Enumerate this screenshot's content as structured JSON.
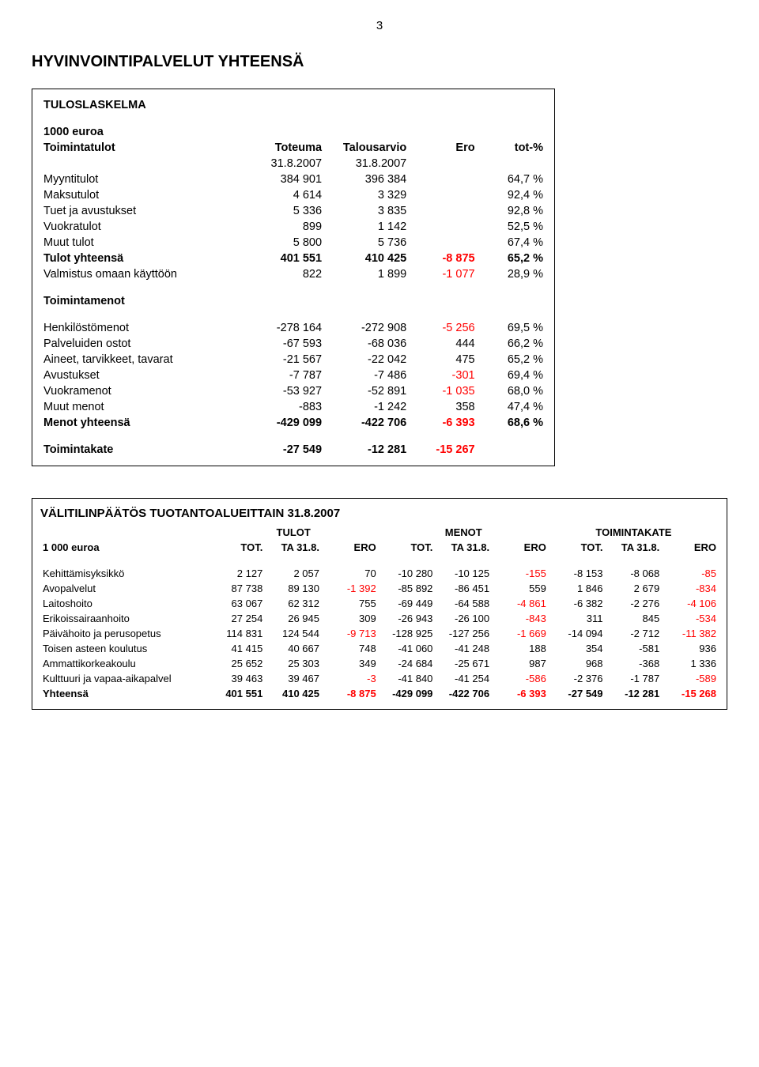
{
  "page_number": "3",
  "main_title": "HYVINVOINTIPALVELUT YHTEENSÄ",
  "table1": {
    "title": "TULOSLASKELMA",
    "subtitle": "1000 euroa",
    "header_row": [
      "Toimintatulot",
      "Toteuma",
      "Talousarvio",
      "Ero",
      "tot-%"
    ],
    "date_row": [
      "",
      "31.8.2007",
      "31.8.2007",
      "",
      ""
    ],
    "rows": [
      {
        "label": "Myyntitulot",
        "c": [
          "384 901",
          "396 384",
          "",
          "64,7 %"
        ],
        "neg": [
          false,
          false,
          false,
          false
        ]
      },
      {
        "label": "Maksutulot",
        "c": [
          "4 614",
          "3 329",
          "",
          "92,4 %"
        ],
        "neg": [
          false,
          false,
          false,
          false
        ]
      },
      {
        "label": "Tuet ja avustukset",
        "c": [
          "5 336",
          "3 835",
          "",
          "92,8 %"
        ],
        "neg": [
          false,
          false,
          false,
          false
        ]
      },
      {
        "label": "Vuokratulot",
        "c": [
          "899",
          "1 142",
          "",
          "52,5 %"
        ],
        "neg": [
          false,
          false,
          false,
          false
        ]
      },
      {
        "label": "Muut tulot",
        "c": [
          "5 800",
          "5 736",
          "",
          "67,4 %"
        ],
        "neg": [
          false,
          false,
          false,
          false
        ]
      },
      {
        "label": "Tulot yhteensä",
        "c": [
          "401 551",
          "410 425",
          "-8 875",
          "65,2 %"
        ],
        "neg": [
          false,
          false,
          true,
          false
        ],
        "bold": true
      },
      {
        "label": "Valmistus omaan käyttöön",
        "c": [
          "822",
          "1 899",
          "-1 077",
          "28,9 %"
        ],
        "neg": [
          false,
          false,
          true,
          false
        ]
      }
    ],
    "toimintamenot_label": "Toimintamenot",
    "rows2": [
      {
        "label": "Henkilöstömenot",
        "c": [
          "-278 164",
          "-272 908",
          "-5 256",
          "69,5 %"
        ],
        "neg": [
          false,
          false,
          true,
          false
        ]
      },
      {
        "label": "Palveluiden ostot",
        "c": [
          "-67 593",
          "-68 036",
          "444",
          "66,2 %"
        ],
        "neg": [
          false,
          false,
          false,
          false
        ]
      },
      {
        "label": "Aineet, tarvikkeet, tavarat",
        "c": [
          "-21 567",
          "-22 042",
          "475",
          "65,2 %"
        ],
        "neg": [
          false,
          false,
          false,
          false
        ]
      },
      {
        "label": "Avustukset",
        "c": [
          "-7 787",
          "-7 486",
          "-301",
          "69,4 %"
        ],
        "neg": [
          false,
          false,
          true,
          false
        ]
      },
      {
        "label": "Vuokramenot",
        "c": [
          "-53 927",
          "-52 891",
          "-1 035",
          "68,0 %"
        ],
        "neg": [
          false,
          false,
          true,
          false
        ]
      },
      {
        "label": "Muut menot",
        "c": [
          "-883",
          "-1 242",
          "358",
          "47,4 %"
        ],
        "neg": [
          false,
          false,
          false,
          false
        ]
      },
      {
        "label": "Menot yhteensä",
        "c": [
          "-429 099",
          "-422 706",
          "-6 393",
          "68,6 %"
        ],
        "neg": [
          false,
          false,
          true,
          false
        ],
        "bold": true
      }
    ],
    "kate_row": {
      "label": "Toimintakate",
      "c": [
        "-27 549",
        "-12 281",
        "-15 267",
        ""
      ],
      "neg": [
        false,
        false,
        true,
        false
      ],
      "bold": true
    }
  },
  "table2": {
    "title": "VÄLITILINPÄÄTÖS TUOTANTOALUEITTAIN 31.8.2007",
    "group_headers": [
      "TULOT",
      "MENOT",
      "TOIMINTAKATE"
    ],
    "left_header": "1 000 euroa",
    "col_sub": [
      "TOT.",
      "TA 31.8.",
      "ERO",
      "TOT.",
      "TA 31.8.",
      "ERO",
      "TOT.",
      "TA 31.8.",
      "ERO"
    ],
    "rows": [
      {
        "label": "Kehittämisyksikkö",
        "c": [
          "2 127",
          "2 057",
          "70",
          "-10 280",
          "-10 125",
          "-155",
          "-8 153",
          "-8 068",
          "-85"
        ],
        "neg": [
          false,
          false,
          false,
          false,
          false,
          true,
          false,
          false,
          true
        ]
      },
      {
        "label": "Avopalvelut",
        "c": [
          "87 738",
          "89 130",
          "-1 392",
          "-85 892",
          "-86 451",
          "559",
          "1 846",
          "2 679",
          "-834"
        ],
        "neg": [
          false,
          false,
          true,
          false,
          false,
          false,
          false,
          false,
          true
        ]
      },
      {
        "label": "Laitoshoito",
        "c": [
          "63 067",
          "62 312",
          "755",
          "-69 449",
          "-64 588",
          "-4 861",
          "-6 382",
          "-2 276",
          "-4 106"
        ],
        "neg": [
          false,
          false,
          false,
          false,
          false,
          true,
          false,
          false,
          true
        ]
      },
      {
        "label": "Erikoissairaanhoito",
        "c": [
          "27 254",
          "26 945",
          "309",
          "-26 943",
          "-26 100",
          "-843",
          "311",
          "845",
          "-534"
        ],
        "neg": [
          false,
          false,
          false,
          false,
          false,
          true,
          false,
          false,
          true
        ]
      },
      {
        "label": "Päivähoito ja perusopetus",
        "c": [
          "114 831",
          "124 544",
          "-9 713",
          "-128 925",
          "-127 256",
          "-1 669",
          "-14 094",
          "-2 712",
          "-11 382"
        ],
        "neg": [
          false,
          false,
          true,
          false,
          false,
          true,
          false,
          false,
          true
        ]
      },
      {
        "label": "Toisen asteen koulutus",
        "c": [
          "41 415",
          "40 667",
          "748",
          "-41 060",
          "-41 248",
          "188",
          "354",
          "-581",
          "936"
        ],
        "neg": [
          false,
          false,
          false,
          false,
          false,
          false,
          false,
          false,
          false
        ]
      },
      {
        "label": "Ammattikorkeakoulu",
        "c": [
          "25 652",
          "25 303",
          "349",
          "-24 684",
          "-25 671",
          "987",
          "968",
          "-368",
          "1 336"
        ],
        "neg": [
          false,
          false,
          false,
          false,
          false,
          false,
          false,
          false,
          false
        ]
      },
      {
        "label": "Kulttuuri ja vapaa-aikapalvel",
        "c": [
          "39 463",
          "39 467",
          "-3",
          "-41 840",
          "-41 254",
          "-586",
          "-2 376",
          "-1 787",
          "-589"
        ],
        "neg": [
          false,
          false,
          true,
          false,
          false,
          true,
          false,
          false,
          true
        ]
      },
      {
        "label": "Yhteensä",
        "c": [
          "401 551",
          "410 425",
          "-8 875",
          "-429 099",
          "-422 706",
          "-6 393",
          "-27 549",
          "-12 281",
          "-15 268"
        ],
        "neg": [
          false,
          false,
          true,
          false,
          false,
          true,
          false,
          false,
          true
        ],
        "bold": true
      }
    ]
  },
  "colors": {
    "text": "#000000",
    "negative": "#ff0000",
    "background": "#ffffff",
    "border": "#000000"
  }
}
